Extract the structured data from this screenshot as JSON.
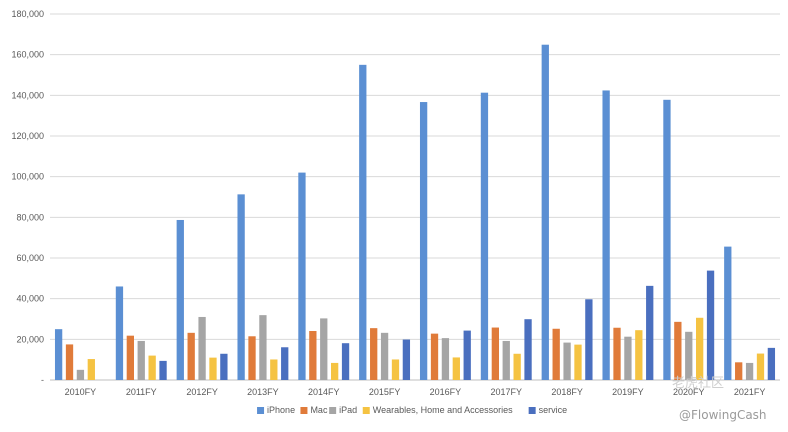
{
  "chart_data": {
    "type": "bar",
    "categories": [
      "2010FY",
      "2011FY",
      "2012FY",
      "2013FY",
      "2014FY",
      "2015FY",
      "2016FY",
      "2017FY",
      "2018FY",
      "2019FY",
      "2020FY",
      "2021FY"
    ],
    "series": [
      {
        "name": "iPhone",
        "color": "#5b8fd3",
        "values": [
          25000,
          46000,
          78700,
          91300,
          102000,
          155000,
          136700,
          141300,
          164900,
          142400,
          137800,
          65600
        ]
      },
      {
        "name": "Mac",
        "color": "#e07b3a",
        "values": [
          17500,
          21800,
          23200,
          21500,
          24100,
          25500,
          22800,
          25800,
          25200,
          25700,
          28600,
          8700
        ]
      },
      {
        "name": "iPad",
        "color": "#a5a5a5",
        "values": [
          5000,
          19200,
          31000,
          31900,
          30300,
          23200,
          20600,
          19200,
          18400,
          21300,
          23700,
          8400
        ]
      },
      {
        "name": "Wearables, Home and Accessories",
        "color": "#f5c342",
        "values": [
          10300,
          12000,
          11000,
          10100,
          8400,
          10100,
          11100,
          12900,
          17400,
          24500,
          30600,
          13000
        ]
      },
      {
        "name": "service",
        "color": "#4a6fbf",
        "values": [
          0,
          9400,
          12900,
          16100,
          18100,
          19900,
          24300,
          29900,
          39700,
          46300,
          53800,
          15800
        ]
      }
    ],
    "y_ticks": [
      "-",
      "20,000",
      "40,000",
      "60,000",
      "80,000",
      "100,000",
      "120,000",
      "140,000",
      "160,000",
      "180,000"
    ],
    "ylim": [
      0,
      180000
    ],
    "grid": true,
    "legend": "bottom",
    "title": "",
    "xlabel": "",
    "ylabel": ""
  },
  "watermark": {
    "top": "老虎社区",
    "bottom": "@FlowingCash"
  }
}
